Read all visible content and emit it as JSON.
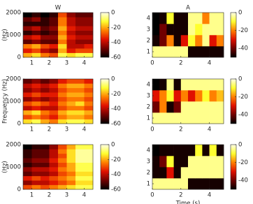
{
  "chart_data": [
    {
      "type": "heatmap",
      "title": "W",
      "ylabel": "(Hz)",
      "x": [
        0.75,
        1.25,
        1.75,
        2.25,
        2.75,
        3.25,
        3.75,
        4.25
      ],
      "y": [
        100,
        300,
        500,
        700,
        900,
        1100,
        1300,
        1500,
        1700,
        1900
      ],
      "values": [
        [
          -20,
          -15,
          -25,
          -30,
          -10,
          -15,
          -10,
          -10
        ],
        [
          -35,
          -30,
          -40,
          -45,
          -20,
          -35,
          -30,
          -30
        ],
        [
          -25,
          -20,
          -30,
          -35,
          -15,
          -40,
          -40,
          -35
        ],
        [
          -50,
          -45,
          -50,
          -50,
          -25,
          -40,
          -45,
          -45
        ],
        [
          -40,
          -35,
          -45,
          -45,
          -20,
          -35,
          -40,
          -40
        ],
        [
          -55,
          -50,
          -55,
          -50,
          -25,
          -40,
          -45,
          -45
        ],
        [
          -45,
          -40,
          -50,
          -45,
          -20,
          -35,
          -40,
          -40
        ],
        [
          -55,
          -55,
          -55,
          -50,
          -25,
          -40,
          -45,
          -45
        ],
        [
          -50,
          -45,
          -55,
          -50,
          -25,
          -40,
          -45,
          -45
        ],
        [
          -60,
          -55,
          -60,
          -55,
          -30,
          -45,
          -50,
          -50
        ]
      ],
      "xlim": [
        0.5,
        4.5
      ],
      "ylim": [
        0,
        2000
      ],
      "xticks": [
        1,
        2,
        3,
        4
      ],
      "yticks": [
        0,
        1000,
        2000
      ],
      "clim": [
        -60,
        0
      ],
      "cticks": [
        0,
        -20,
        -40,
        -60
      ],
      "colormap": [
        "#000000",
        "#700000",
        "#e01000",
        "#ff8000",
        "#ffff30",
        "#ffffe8"
      ]
    },
    {
      "type": "heatmap",
      "title": "A",
      "x": [
        0.25,
        0.75,
        1.25,
        1.75,
        2.25,
        2.75,
        3.25,
        3.75,
        4.25,
        4.75
      ],
      "y": [
        1,
        2,
        3,
        4
      ],
      "values": [
        [
          -5,
          -5,
          -5,
          -5,
          -5,
          -48,
          -48,
          -48,
          -48,
          -48
        ],
        [
          -48,
          -40,
          -20,
          -48,
          -30,
          -10,
          -20,
          -5,
          -30,
          -20
        ],
        [
          -50,
          -40,
          -48,
          -48,
          -48,
          -5,
          -10,
          -5,
          -5,
          -5
        ],
        [
          -50,
          -48,
          -10,
          -48,
          -48,
          -5,
          -5,
          -20,
          -5,
          -5
        ]
      ],
      "xlim": [
        0,
        5
      ],
      "ylim": [
        0.5,
        4.5
      ],
      "xticks": [
        0,
        2,
        4
      ],
      "yticks": [
        1,
        2,
        3,
        4
      ],
      "clim": [
        -50,
        0
      ],
      "cticks": [
        0,
        -20,
        -40
      ],
      "colormap": [
        "#000000",
        "#700000",
        "#e01000",
        "#ff8000",
        "#ffff30",
        "#ffffe8"
      ]
    },
    {
      "type": "heatmap",
      "ylabel": "Frequency (Hz)",
      "x": [
        0.75,
        1.25,
        1.75,
        2.25,
        2.75,
        3.25,
        3.75,
        4.25
      ],
      "y": [
        100,
        300,
        500,
        700,
        900,
        1100,
        1300,
        1500,
        1700,
        1900
      ],
      "values": [
        [
          -15,
          -10,
          -20,
          -25,
          -15,
          -10,
          -10,
          -15
        ],
        [
          -30,
          -25,
          -30,
          -35,
          -25,
          -20,
          -20,
          -25
        ],
        [
          -20,
          -15,
          -25,
          -30,
          -20,
          -15,
          -15,
          -20
        ],
        [
          -40,
          -35,
          -40,
          -40,
          -30,
          -25,
          -25,
          -30
        ],
        [
          -30,
          -25,
          -30,
          -35,
          -25,
          -20,
          -15,
          -25
        ],
        [
          -45,
          -40,
          -45,
          -40,
          -30,
          -25,
          -25,
          -30
        ],
        [
          -35,
          -30,
          -35,
          -35,
          -25,
          -20,
          -20,
          -25
        ],
        [
          -45,
          -40,
          -45,
          -40,
          -30,
          -25,
          -25,
          -30
        ],
        [
          -40,
          -35,
          -40,
          -35,
          -25,
          -20,
          -20,
          -25
        ],
        [
          -50,
          -45,
          -50,
          -45,
          -35,
          -30,
          -30,
          -35
        ]
      ],
      "xlim": [
        0.5,
        4.5
      ],
      "ylim": [
        0,
        2000
      ],
      "xticks": [
        1,
        2,
        3,
        4
      ],
      "yticks": [
        0,
        1000,
        2000
      ],
      "clim": [
        -60,
        0
      ],
      "cticks": [
        0,
        -20,
        -40,
        -60
      ],
      "colormap": [
        "#000000",
        "#700000",
        "#e01000",
        "#ff8000",
        "#ffff30",
        "#ffffe8"
      ]
    },
    {
      "type": "heatmap",
      "x": [
        0.25,
        0.75,
        1.25,
        1.75,
        2.25,
        2.75,
        3.25,
        3.75,
        4.25,
        4.75
      ],
      "y": [
        1,
        2,
        3,
        4
      ],
      "values": [
        [
          -5,
          -5,
          -5,
          -5,
          -5,
          -5,
          -5,
          -5,
          -5,
          -5
        ],
        [
          -40,
          -20,
          -48,
          -40,
          -5,
          -5,
          -5,
          -5,
          -5,
          -5
        ],
        [
          -30,
          -20,
          -10,
          -30,
          -20,
          -30,
          -20,
          -10,
          -20,
          -15
        ],
        [
          -50,
          -48,
          -5,
          -48,
          -5,
          -5,
          -5,
          -5,
          -5,
          -5
        ]
      ],
      "xlim": [
        0,
        5
      ],
      "ylim": [
        0.5,
        4.5
      ],
      "xticks": [
        0,
        2,
        4
      ],
      "yticks": [
        1,
        2,
        3,
        4
      ],
      "clim": [
        -50,
        0
      ],
      "cticks": [
        0,
        -20,
        -40
      ],
      "colormap": [
        "#000000",
        "#700000",
        "#e01000",
        "#ff8000",
        "#ffff30",
        "#ffffe8"
      ]
    },
    {
      "type": "heatmap",
      "ylabel": "(Hz)",
      "x": [
        0.75,
        1.25,
        1.75,
        2.25,
        2.75,
        3.25,
        3.75,
        4.25
      ],
      "y": [
        100,
        300,
        500,
        700,
        900,
        1100,
        1300,
        1500,
        1700,
        1900
      ],
      "values": [
        [
          -30,
          -25,
          -30,
          -25,
          -20,
          -15,
          -10,
          -10
        ],
        [
          -45,
          -40,
          -40,
          -35,
          -30,
          -25,
          -15,
          -15
        ],
        [
          -35,
          -30,
          -35,
          -30,
          -25,
          -20,
          -10,
          -10
        ],
        [
          -50,
          -45,
          -45,
          -40,
          -30,
          -25,
          -15,
          -15
        ],
        [
          -45,
          -40,
          -40,
          -35,
          -25,
          -20,
          -10,
          -10
        ],
        [
          -55,
          -50,
          -50,
          -40,
          -30,
          -20,
          -10,
          -10
        ],
        [
          -50,
          -45,
          -45,
          -35,
          -25,
          -15,
          -5,
          -5
        ],
        [
          -55,
          -50,
          -50,
          -40,
          -30,
          -15,
          -5,
          -5
        ],
        [
          -55,
          -50,
          -50,
          -40,
          -25,
          -15,
          -5,
          -5
        ],
        [
          -60,
          -55,
          -55,
          -45,
          -30,
          -20,
          -10,
          -10
        ]
      ],
      "xlim": [
        0.5,
        4.5
      ],
      "ylim": [
        0,
        2000
      ],
      "xticks": [
        1,
        2,
        3,
        4
      ],
      "yticks": [
        0,
        1000,
        2000
      ],
      "clim": [
        -60,
        0
      ],
      "cticks": [
        0,
        -20,
        -40,
        -60
      ],
      "colormap": [
        "#000000",
        "#700000",
        "#e01000",
        "#ff8000",
        "#ffff30",
        "#ffffe8"
      ]
    },
    {
      "type": "heatmap",
      "xlabel": "Time (s)",
      "x": [
        0.25,
        0.75,
        1.25,
        1.75,
        2.25,
        2.75,
        3.25,
        3.75,
        4.25,
        4.75
      ],
      "y": [
        1,
        2,
        3,
        4
      ],
      "values": [
        [
          -5,
          -5,
          -5,
          -5,
          -5,
          -48,
          -48,
          -48,
          -48,
          -48
        ],
        [
          -48,
          -48,
          -30,
          -48,
          -5,
          -5,
          -5,
          -5,
          -5,
          -5
        ],
        [
          -48,
          -40,
          -10,
          -48,
          -48,
          -5,
          -5,
          -5,
          -5,
          -5
        ],
        [
          -50,
          -48,
          -48,
          -48,
          -48,
          -48,
          -10,
          -48,
          -10,
          -48
        ]
      ],
      "xlim": [
        0,
        5
      ],
      "ylim": [
        0.5,
        4.5
      ],
      "xticks": [
        0,
        2,
        4
      ],
      "yticks": [
        1,
        2,
        3,
        4
      ],
      "clim": [
        -50,
        0
      ],
      "cticks": [
        0,
        -20,
        -40
      ],
      "colormap": [
        "#000000",
        "#700000",
        "#e01000",
        "#ff8000",
        "#ffff30",
        "#ffffe8"
      ]
    }
  ]
}
